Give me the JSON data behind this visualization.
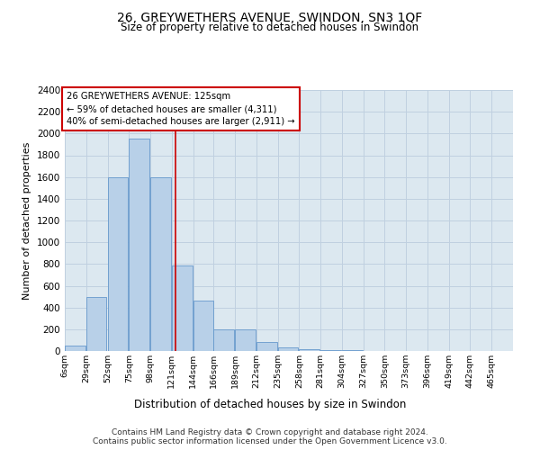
{
  "title": "26, GREYWETHERS AVENUE, SWINDON, SN3 1QF",
  "subtitle": "Size of property relative to detached houses in Swindon",
  "xlabel": "Distribution of detached houses by size in Swindon",
  "ylabel": "Number of detached properties",
  "footer_line1": "Contains HM Land Registry data © Crown copyright and database right 2024.",
  "footer_line2": "Contains public sector information licensed under the Open Government Licence v3.0.",
  "bar_color": "#b8d0e8",
  "bar_edge_color": "#6699cc",
  "grid_color": "#c0d0e0",
  "annotation_box_color": "#cc0000",
  "annotation_text_line1": "26 GREYWETHERS AVENUE: 125sqm",
  "annotation_text_line2": "← 59% of detached houses are smaller (4,311)",
  "annotation_text_line3": "40% of semi-detached houses are larger (2,911) →",
  "red_line_x": 125,
  "categories": [
    "6sqm",
    "29sqm",
    "52sqm",
    "75sqm",
    "98sqm",
    "121sqm",
    "144sqm",
    "166sqm",
    "189sqm",
    "212sqm",
    "235sqm",
    "258sqm",
    "281sqm",
    "304sqm",
    "327sqm",
    "350sqm",
    "373sqm",
    "396sqm",
    "419sqm",
    "442sqm",
    "465sqm"
  ],
  "bin_edges": [
    6,
    29,
    52,
    75,
    98,
    121,
    144,
    166,
    189,
    212,
    235,
    258,
    281,
    304,
    327,
    350,
    373,
    396,
    419,
    442,
    465
  ],
  "values": [
    50,
    500,
    1600,
    1950,
    1600,
    790,
    460,
    200,
    195,
    80,
    30,
    20,
    5,
    5,
    0,
    0,
    0,
    0,
    0,
    0
  ],
  "ylim": [
    0,
    2400
  ],
  "yticks": [
    0,
    200,
    400,
    600,
    800,
    1000,
    1200,
    1400,
    1600,
    1800,
    2000,
    2200,
    2400
  ],
  "background_color": "#dce8f0",
  "fig_width": 6.0,
  "fig_height": 5.0,
  "dpi": 100
}
